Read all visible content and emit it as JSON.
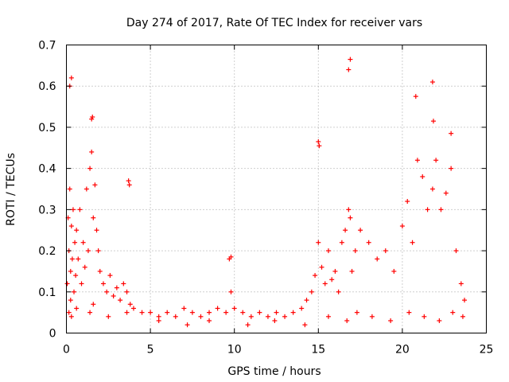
{
  "chart_data": {
    "type": "scatter",
    "title": "Day 274 of 2017, Rate Of TEC Index for receiver vars",
    "xlabel": "GPS time / hours",
    "ylabel": "ROTI / TECUs",
    "xlim": [
      0,
      25
    ],
    "ylim": [
      0,
      0.7
    ],
    "x_ticks": [
      0,
      5,
      10,
      15,
      20,
      25
    ],
    "y_ticks": [
      0,
      0.1,
      0.2,
      0.3,
      0.4,
      0.5,
      0.6,
      0.7
    ],
    "x_tick_labels": [
      "0",
      "5",
      "10",
      "15",
      "20",
      "25"
    ],
    "y_tick_labels": [
      "0",
      "0.1",
      "0.2",
      "0.3",
      "0.4",
      "0.5",
      "0.6",
      "0.7"
    ],
    "grid": true,
    "marker": "plus",
    "color": "#ff0000",
    "series": [
      {
        "x": [
          0.05,
          0.1,
          0.15,
          0.2,
          0.25,
          0.3,
          0.35,
          0.4,
          0.45,
          0.5,
          0.55,
          0.6,
          0.7,
          0.8,
          0.9,
          1.0,
          1.1,
          1.2,
          1.3,
          1.4,
          1.5,
          1.6,
          1.7,
          1.8,
          1.9,
          2.0,
          2.2,
          2.4,
          2.6,
          2.8,
          3.0,
          3.2,
          3.4,
          3.6,
          3.8,
          4.0,
          4.5,
          5.0,
          5.5,
          6.0,
          6.5,
          7.0,
          7.5,
          8.0,
          8.5,
          9.0,
          9.5,
          9.8,
          10.0,
          10.5,
          11.0,
          11.5,
          12.0,
          12.5,
          13.0,
          13.5,
          14.0,
          14.3,
          14.6,
          14.8,
          15.0,
          15.2,
          15.4,
          15.6,
          15.8,
          16.0,
          16.2,
          16.4,
          16.6,
          16.8,
          16.9,
          17.0,
          17.2,
          17.5,
          18.0,
          18.5,
          19.0,
          19.5,
          20.0,
          20.3,
          20.6,
          20.9,
          21.2,
          21.5,
          21.8,
          22.0,
          22.3,
          22.6,
          22.9,
          23.2,
          23.5,
          23.7,
          0.2,
          0.3,
          1.5,
          1.55,
          3.7,
          3.75,
          9.7,
          9.8,
          15.0,
          15.05,
          16.8,
          16.9,
          20.8,
          21.8,
          21.85,
          22.9,
          0.15,
          0.25,
          0.3,
          0.6,
          1.4,
          1.6,
          2.5,
          3.6,
          5.5,
          7.2,
          8.5,
          10.8,
          12.4,
          14.2,
          15.6,
          16.7,
          17.3,
          18.2,
          19.3,
          20.4,
          21.3,
          22.2,
          23.0,
          23.6
        ],
        "y": [
          0.12,
          0.28,
          0.2,
          0.35,
          0.15,
          0.26,
          0.18,
          0.3,
          0.1,
          0.22,
          0.14,
          0.25,
          0.18,
          0.3,
          0.12,
          0.22,
          0.16,
          0.35,
          0.2,
          0.4,
          0.44,
          0.28,
          0.36,
          0.25,
          0.2,
          0.15,
          0.12,
          0.1,
          0.14,
          0.09,
          0.11,
          0.08,
          0.12,
          0.1,
          0.07,
          0.06,
          0.05,
          0.05,
          0.04,
          0.05,
          0.04,
          0.06,
          0.05,
          0.04,
          0.05,
          0.06,
          0.05,
          0.1,
          0.06,
          0.05,
          0.04,
          0.05,
          0.04,
          0.05,
          0.04,
          0.05,
          0.06,
          0.08,
          0.1,
          0.14,
          0.22,
          0.16,
          0.12,
          0.2,
          0.13,
          0.15,
          0.1,
          0.22,
          0.25,
          0.3,
          0.28,
          0.15,
          0.2,
          0.25,
          0.22,
          0.18,
          0.2,
          0.15,
          0.26,
          0.32,
          0.22,
          0.42,
          0.38,
          0.3,
          0.35,
          0.42,
          0.3,
          0.34,
          0.4,
          0.2,
          0.12,
          0.08,
          0.6,
          0.62,
          0.52,
          0.525,
          0.37,
          0.36,
          0.18,
          0.185,
          0.465,
          0.455,
          0.64,
          0.665,
          0.575,
          0.61,
          0.515,
          0.485,
          0.05,
          0.08,
          0.04,
          0.06,
          0.05,
          0.07,
          0.04,
          0.05,
          0.03,
          0.02,
          0.03,
          0.02,
          0.03,
          0.02,
          0.04,
          0.03,
          0.05,
          0.04,
          0.03,
          0.05,
          0.04,
          0.03,
          0.05,
          0.04
        ]
      }
    ]
  }
}
